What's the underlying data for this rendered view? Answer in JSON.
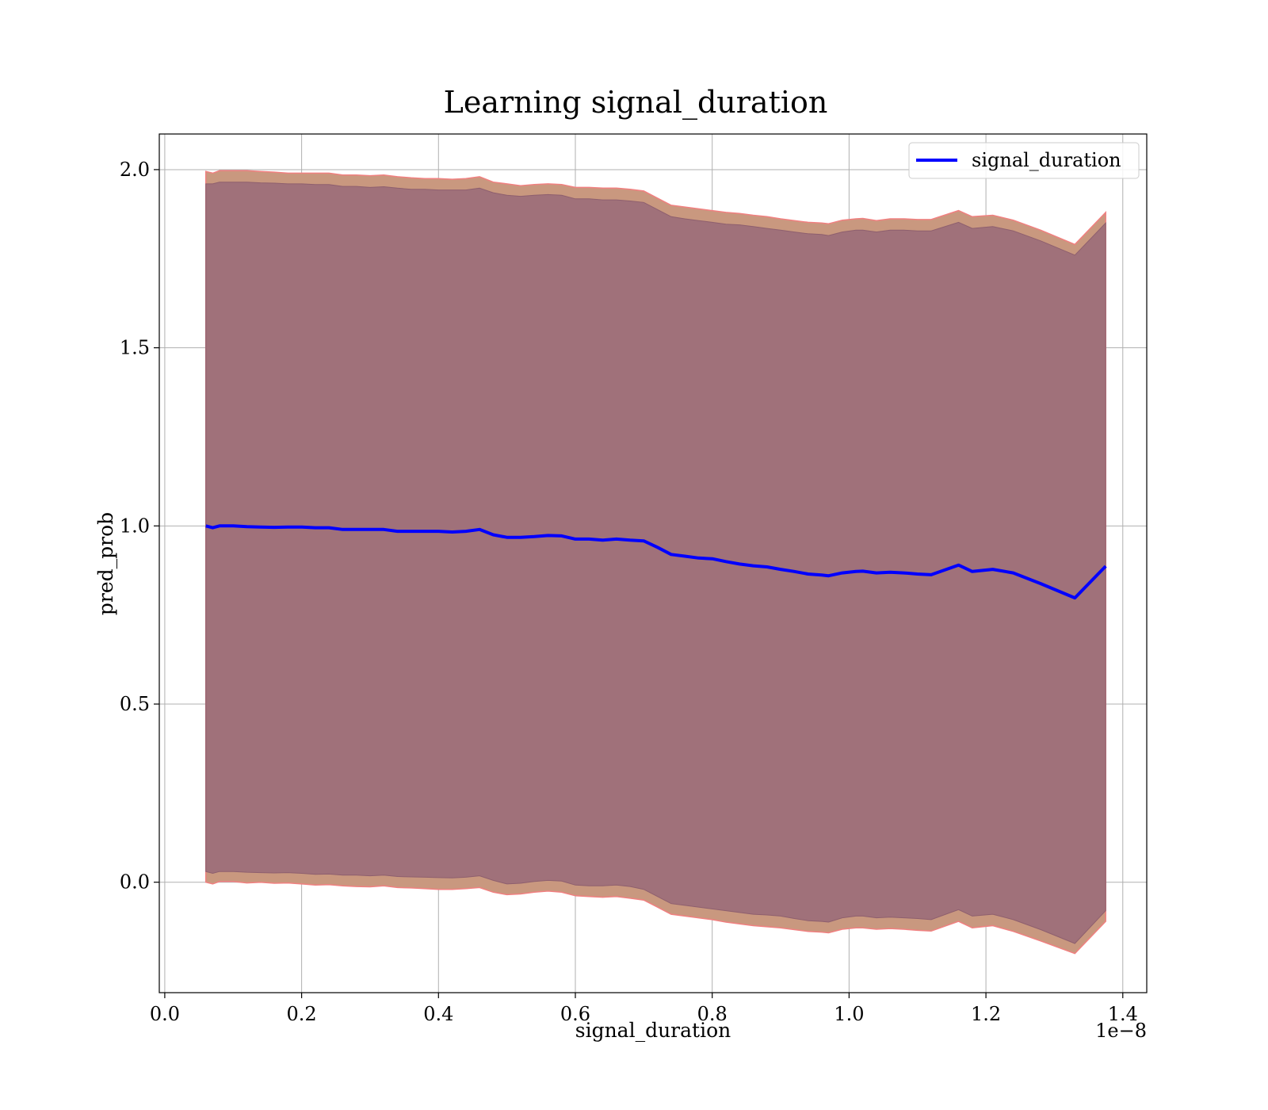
{
  "chart_data": {
    "type": "area",
    "title": "Learning signal_duration",
    "xlabel": "signal_duration",
    "ylabel": "pred_prob",
    "x_offset_text": "1e−8",
    "xlim": [
      -0.008,
      1.435
    ],
    "ylim": [
      -0.31,
      2.1
    ],
    "xticks": [
      0.0,
      0.2,
      0.4,
      0.6,
      0.8,
      1.0,
      1.2,
      1.4
    ],
    "xtick_labels": [
      "0.0",
      "0.2",
      "0.4",
      "0.6",
      "0.8",
      "1.0",
      "1.2",
      "1.4"
    ],
    "yticks": [
      0.0,
      0.5,
      1.0,
      1.5,
      2.0
    ],
    "ytick_labels": [
      "0.0",
      "0.5",
      "1.0",
      "1.5",
      "2.0"
    ],
    "grid": true,
    "legend": {
      "position": "top-right",
      "entries": [
        {
          "label": "signal_duration",
          "color": "#0000ff"
        }
      ]
    },
    "colors": {
      "line": "#0000ff",
      "outer_band_fill": "#c9987f",
      "outer_band_edge": "#f08080",
      "inner_band_fill": "#a0717a",
      "grid": "#b0b0b0"
    },
    "series": [
      {
        "name": "signal_duration",
        "x": [
          0.06,
          0.07,
          0.08,
          0.1,
          0.12,
          0.14,
          0.16,
          0.18,
          0.2,
          0.22,
          0.24,
          0.26,
          0.28,
          0.3,
          0.32,
          0.34,
          0.36,
          0.38,
          0.4,
          0.42,
          0.44,
          0.46,
          0.48,
          0.5,
          0.52,
          0.54,
          0.56,
          0.58,
          0.6,
          0.62,
          0.64,
          0.66,
          0.68,
          0.7,
          0.72,
          0.74,
          0.76,
          0.78,
          0.8,
          0.82,
          0.84,
          0.86,
          0.88,
          0.9,
          0.92,
          0.94,
          0.96,
          0.97,
          0.99,
          1.01,
          1.02,
          1.04,
          1.06,
          1.08,
          1.1,
          1.12,
          1.16,
          1.18,
          1.21,
          1.24,
          1.28,
          1.33,
          1.375
        ],
        "y": [
          1.0,
          0.995,
          1.0,
          1.0,
          0.998,
          0.997,
          0.996,
          0.997,
          0.997,
          0.995,
          0.995,
          0.99,
          0.99,
          0.99,
          0.99,
          0.985,
          0.985,
          0.985,
          0.985,
          0.983,
          0.985,
          0.99,
          0.975,
          0.968,
          0.968,
          0.97,
          0.973,
          0.972,
          0.963,
          0.963,
          0.96,
          0.963,
          0.96,
          0.958,
          0.94,
          0.92,
          0.915,
          0.91,
          0.908,
          0.9,
          0.893,
          0.888,
          0.885,
          0.878,
          0.872,
          0.865,
          0.862,
          0.86,
          0.868,
          0.872,
          0.873,
          0.868,
          0.87,
          0.868,
          0.865,
          0.863,
          0.89,
          0.872,
          0.878,
          0.868,
          0.838,
          0.798,
          0.887
        ],
        "upper_outer": [
          1.995,
          1.99,
          1.997,
          1.997,
          1.997,
          1.995,
          1.993,
          1.99,
          1.99,
          1.99,
          1.99,
          1.985,
          1.985,
          1.983,
          1.985,
          1.98,
          1.977,
          1.975,
          1.975,
          1.973,
          1.975,
          1.98,
          1.965,
          1.96,
          1.955,
          1.958,
          1.96,
          1.958,
          1.95,
          1.95,
          1.948,
          1.948,
          1.945,
          1.94,
          1.92,
          1.9,
          1.895,
          1.89,
          1.885,
          1.88,
          1.877,
          1.872,
          1.868,
          1.862,
          1.857,
          1.852,
          1.85,
          1.848,
          1.858,
          1.862,
          1.863,
          1.857,
          1.862,
          1.862,
          1.86,
          1.86,
          1.885,
          1.868,
          1.872,
          1.858,
          1.83,
          1.79,
          1.88
        ],
        "upper_inner": [
          1.96,
          1.96,
          1.965,
          1.965,
          1.965,
          1.963,
          1.962,
          1.96,
          1.96,
          1.958,
          1.958,
          1.953,
          1.953,
          1.95,
          1.952,
          1.948,
          1.945,
          1.945,
          1.943,
          1.943,
          1.943,
          1.948,
          1.935,
          1.928,
          1.925,
          1.928,
          1.93,
          1.928,
          1.918,
          1.918,
          1.915,
          1.915,
          1.912,
          1.908,
          1.888,
          1.868,
          1.862,
          1.857,
          1.852,
          1.847,
          1.845,
          1.84,
          1.835,
          1.83,
          1.825,
          1.82,
          1.818,
          1.815,
          1.825,
          1.83,
          1.83,
          1.825,
          1.83,
          1.83,
          1.828,
          1.828,
          1.852,
          1.835,
          1.84,
          1.828,
          1.8,
          1.76,
          1.85
        ],
        "lower_inner": [
          0.03,
          0.025,
          0.03,
          0.03,
          0.028,
          0.027,
          0.026,
          0.027,
          0.025,
          0.022,
          0.023,
          0.02,
          0.02,
          0.018,
          0.02,
          0.016,
          0.015,
          0.014,
          0.013,
          0.012,
          0.014,
          0.018,
          0.005,
          -0.005,
          -0.003,
          0.002,
          0.005,
          0.003,
          -0.008,
          -0.01,
          -0.01,
          -0.008,
          -0.012,
          -0.02,
          -0.04,
          -0.06,
          -0.065,
          -0.07,
          -0.075,
          -0.08,
          -0.085,
          -0.09,
          -0.092,
          -0.095,
          -0.102,
          -0.108,
          -0.11,
          -0.112,
          -0.1,
          -0.095,
          -0.095,
          -0.1,
          -0.098,
          -0.1,
          -0.102,
          -0.105,
          -0.077,
          -0.095,
          -0.09,
          -0.105,
          -0.133,
          -0.172,
          -0.08
        ],
        "lower_outer": [
          0.0,
          -0.005,
          0.002,
          0.002,
          -0.002,
          0.0,
          -0.003,
          -0.002,
          -0.005,
          -0.008,
          -0.007,
          -0.01,
          -0.012,
          -0.013,
          -0.01,
          -0.015,
          -0.016,
          -0.018,
          -0.02,
          -0.02,
          -0.018,
          -0.015,
          -0.028,
          -0.035,
          -0.033,
          -0.028,
          -0.025,
          -0.028,
          -0.038,
          -0.04,
          -0.042,
          -0.04,
          -0.045,
          -0.05,
          -0.07,
          -0.09,
          -0.095,
          -0.1,
          -0.105,
          -0.112,
          -0.117,
          -0.122,
          -0.125,
          -0.128,
          -0.133,
          -0.138,
          -0.14,
          -0.142,
          -0.132,
          -0.128,
          -0.128,
          -0.132,
          -0.13,
          -0.132,
          -0.135,
          -0.137,
          -0.11,
          -0.128,
          -0.122,
          -0.138,
          -0.165,
          -0.2,
          -0.11
        ]
      }
    ]
  }
}
